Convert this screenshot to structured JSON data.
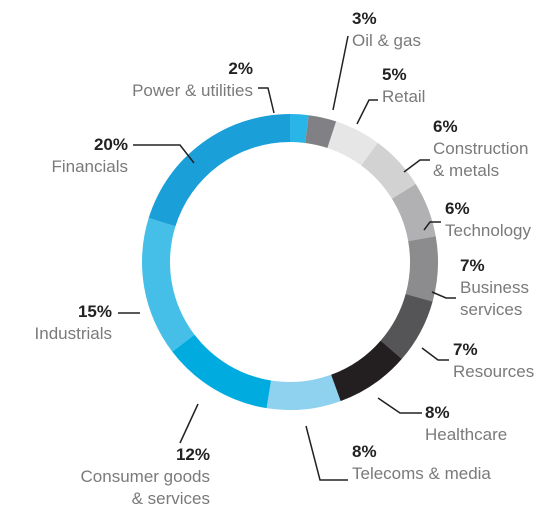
{
  "chart_data": {
    "type": "donut",
    "categories": [
      "Power & utilities",
      "Oil & gas",
      "Retail",
      "Construction\n& metals",
      "Technology",
      "Business\nservices",
      "Resources",
      "Healthcare",
      "Telecoms & media",
      "Consumer goods\n& services",
      "Industrials",
      "Financials"
    ],
    "values": [
      2,
      3,
      5,
      6,
      6,
      7,
      7,
      8,
      8,
      12,
      15,
      20
    ],
    "value_labels": [
      "2%",
      "3%",
      "5%",
      "6%",
      "6%",
      "7%",
      "7%",
      "8%",
      "8%",
      "12%",
      "15%",
      "20%"
    ],
    "colors": [
      "#29b5e8",
      "#808085",
      "#e6e6e6",
      "#d2d2d2",
      "#b1b1b3",
      "#8c8c8e",
      "#555557",
      "#231f20",
      "#8fd2f0",
      "#00acdf",
      "#45bfe8",
      "#1b9fd9"
    ]
  }
}
